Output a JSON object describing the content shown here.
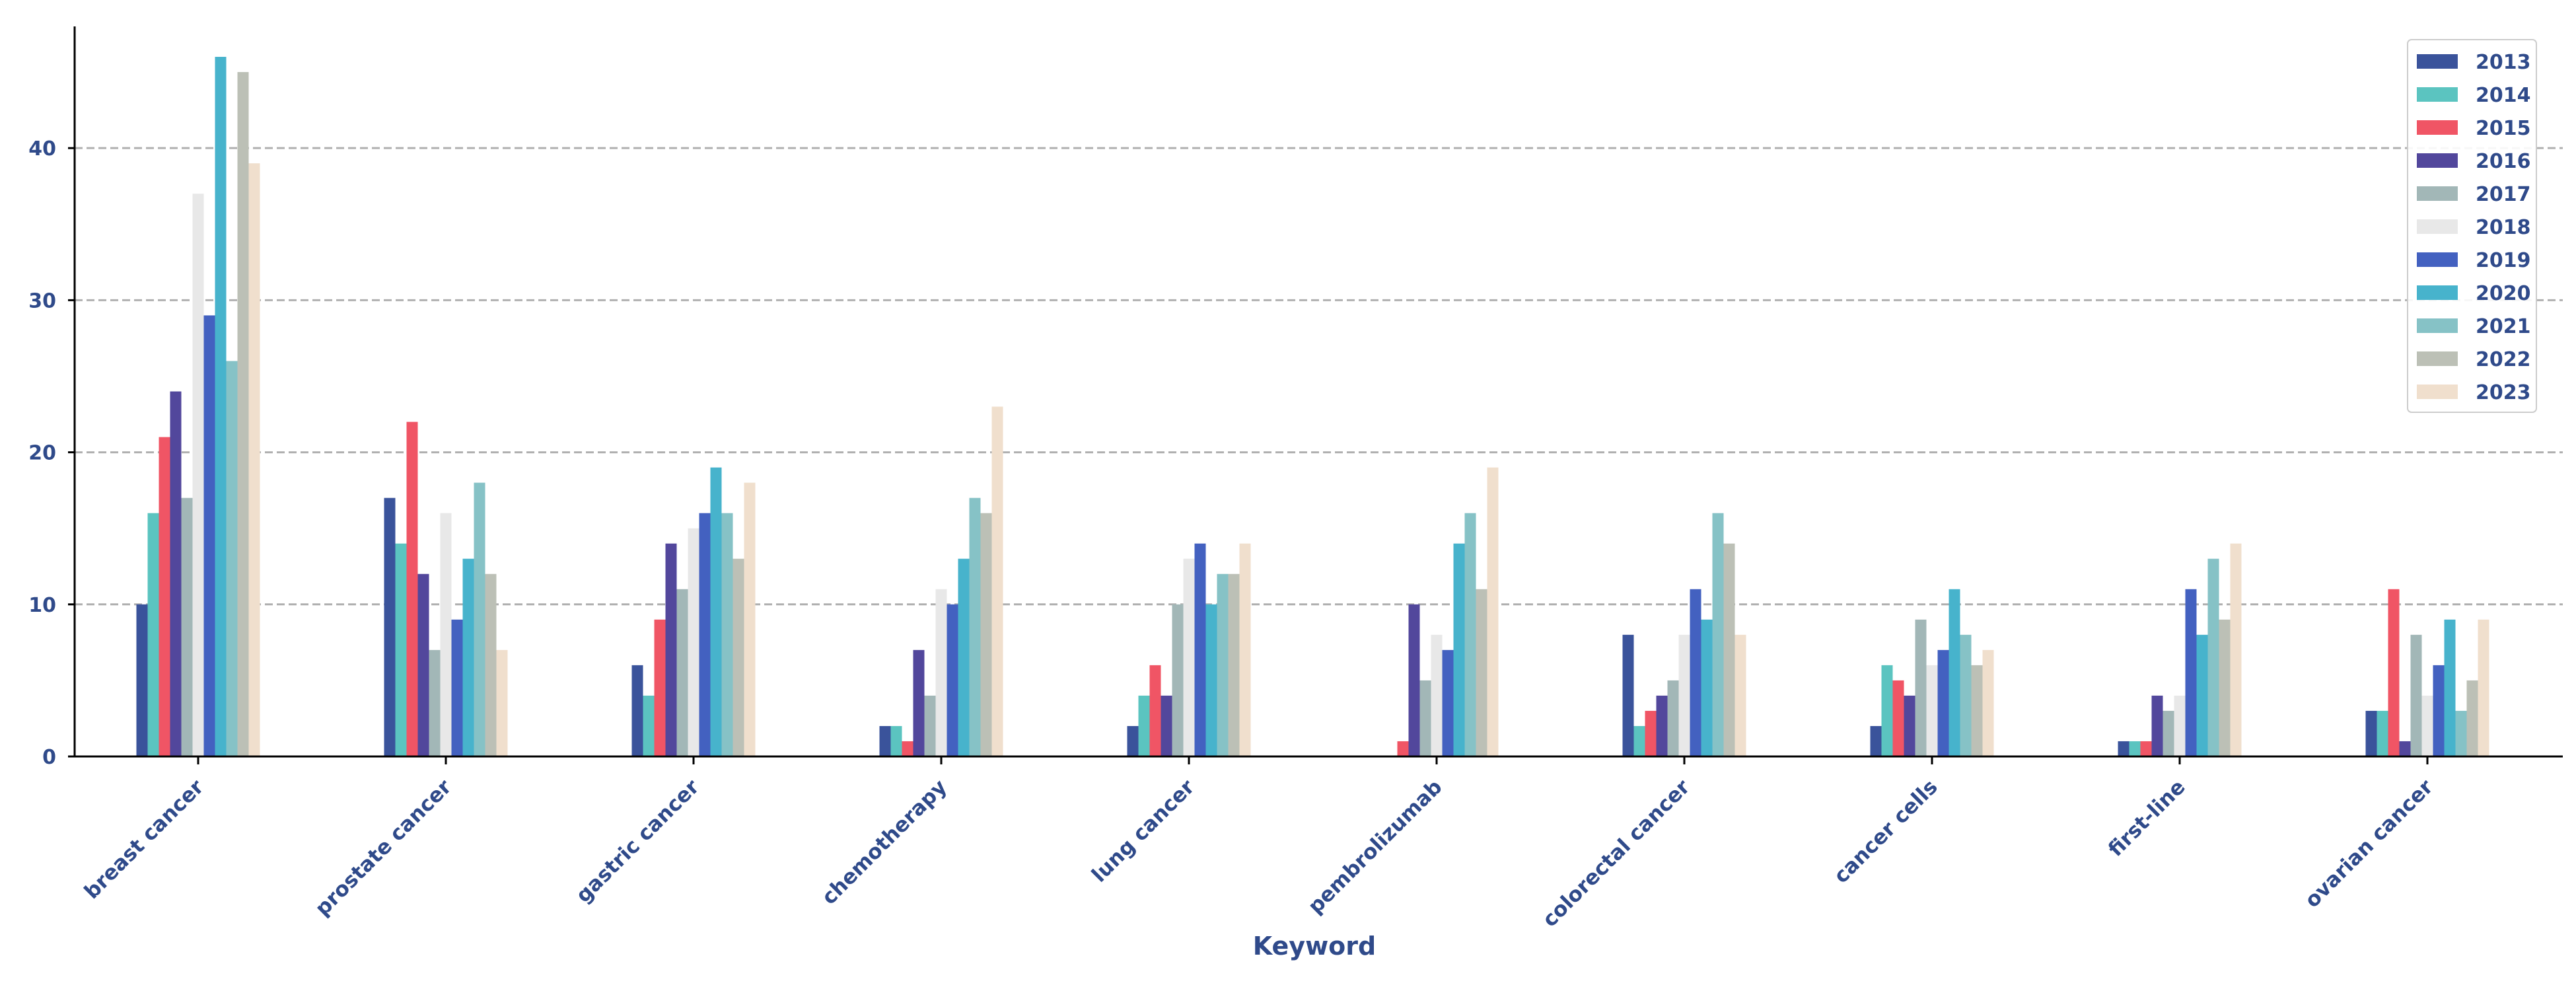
{
  "chart_data": {
    "type": "bar",
    "xlabel": "Keyword",
    "ylabel": "",
    "ylim": [
      0,
      48
    ],
    "yticks": [
      0,
      10,
      20,
      30,
      40
    ],
    "grid": "horizontal dashed",
    "legend_position": "top-right",
    "categories": [
      "breast cancer",
      "prostate cancer",
      "gastric cancer",
      "chemotherapy",
      "lung cancer",
      "pembrolizumab",
      "colorectal cancer",
      "cancer cells",
      "first-line",
      "ovarian cancer"
    ],
    "series": [
      {
        "name": "2013",
        "color": "#3a539b",
        "values": [
          10,
          17,
          6,
          2,
          2,
          0,
          8,
          2,
          1,
          3
        ]
      },
      {
        "name": "2014",
        "color": "#5bc4c0",
        "values": [
          16,
          14,
          4,
          2,
          4,
          0,
          2,
          6,
          1,
          3
        ]
      },
      {
        "name": "2015",
        "color": "#f05565",
        "values": [
          21,
          22,
          9,
          1,
          6,
          1,
          3,
          5,
          1,
          11
        ]
      },
      {
        "name": "2016",
        "color": "#52479c",
        "values": [
          24,
          12,
          14,
          7,
          4,
          10,
          4,
          4,
          4,
          1
        ]
      },
      {
        "name": "2017",
        "color": "#a2b7b7",
        "values": [
          17,
          7,
          11,
          4,
          10,
          5,
          5,
          9,
          3,
          8
        ]
      },
      {
        "name": "2018",
        "color": "#e8e8e8",
        "values": [
          37,
          16,
          15,
          11,
          13,
          8,
          8,
          6,
          4,
          4
        ]
      },
      {
        "name": "2019",
        "color": "#4361c0",
        "values": [
          29,
          9,
          16,
          10,
          14,
          7,
          11,
          7,
          11,
          6
        ]
      },
      {
        "name": "2020",
        "color": "#47b3cc",
        "values": [
          46,
          13,
          19,
          13,
          10,
          14,
          9,
          11,
          8,
          9
        ]
      },
      {
        "name": "2021",
        "color": "#86c2c6",
        "values": [
          26,
          18,
          16,
          17,
          12,
          16,
          16,
          8,
          13,
          3
        ]
      },
      {
        "name": "2022",
        "color": "#bcc0b6",
        "values": [
          45,
          12,
          13,
          16,
          12,
          11,
          14,
          6,
          9,
          5
        ]
      },
      {
        "name": "2023",
        "color": "#f0dfcd",
        "values": [
          39,
          7,
          18,
          23,
          14,
          19,
          8,
          7,
          14,
          9
        ]
      }
    ]
  }
}
